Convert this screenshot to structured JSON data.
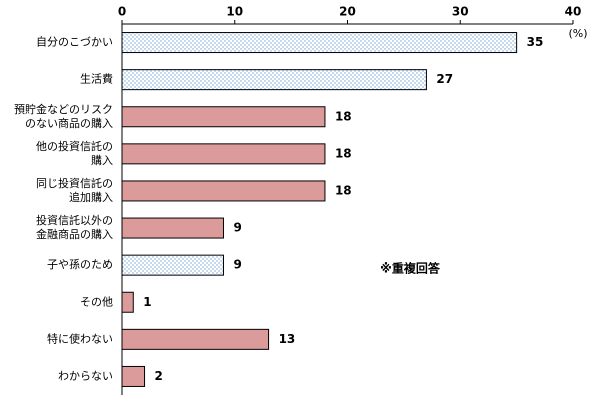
{
  "chart_data": {
    "type": "bar",
    "orientation": "horizontal",
    "categories": [
      [
        "自分のこづかい"
      ],
      [
        "生活費"
      ],
      [
        "預貯金などのリスク",
        "のない商品の購入"
      ],
      [
        "他の投資信託の",
        "購入"
      ],
      [
        "同じ投資信託の",
        "追加購入"
      ],
      [
        "投資信託以外の",
        "金融商品の購入"
      ],
      [
        "子や孫のため"
      ],
      [
        "その他"
      ],
      [
        "特に使わない"
      ],
      [
        "わからない"
      ]
    ],
    "values": [
      35,
      27,
      18,
      18,
      18,
      9,
      9,
      1,
      13,
      2
    ],
    "patterned": [
      true,
      true,
      false,
      false,
      false,
      false,
      true,
      false,
      false,
      false
    ],
    "color": "#dc9b9b",
    "pattern_color": "#6fa0d8",
    "xlim": [
      0,
      40
    ],
    "xticks": [
      0,
      10,
      20,
      30,
      40
    ],
    "unit_label": "(%)",
    "annotation": "※重複回答"
  }
}
